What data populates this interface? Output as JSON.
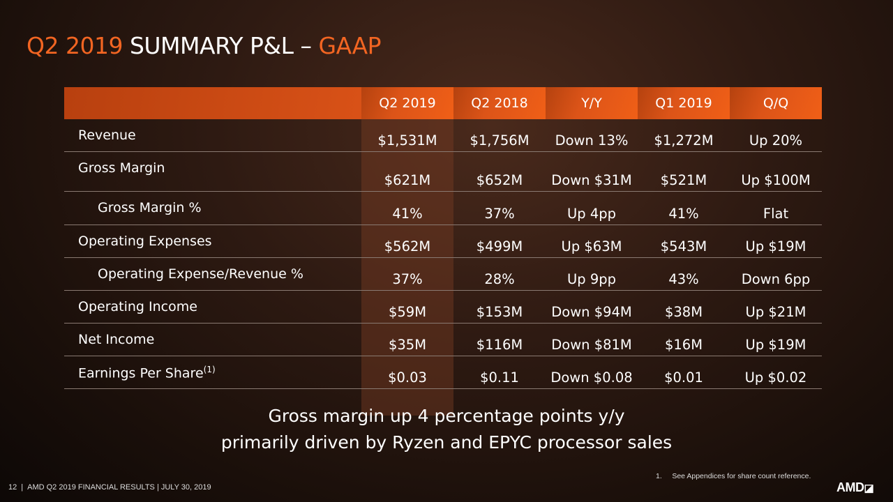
{
  "title": {
    "part1": "Q2 2019",
    "part2": " SUMMARY P&L – ",
    "part3": "GAAP"
  },
  "columns": [
    "Q2 2019",
    "Q2 2018",
    "Y/Y",
    "Q1 2019",
    "Q/Q"
  ],
  "rows": [
    {
      "label": "Revenue",
      "values": [
        "$1,531M",
        "$1,756M",
        "Down 13%",
        "$1,272M",
        "Up 20%"
      ]
    },
    {
      "label": "Gross Margin",
      "values": [
        "$621M",
        "$652M",
        "Down $31M",
        "$521M",
        "Up $100M"
      ]
    },
    {
      "label": "Gross Margin %",
      "values": [
        "41%",
        "37%",
        "Up 4pp",
        "41%",
        "Flat"
      ]
    },
    {
      "label": "Operating Expenses",
      "values": [
        "$562M",
        "$499M",
        "Up $63M",
        "$543M",
        "Up $19M"
      ]
    },
    {
      "label": "Operating Expense/Revenue %",
      "values": [
        "37%",
        "28%",
        "Up 9pp",
        "43%",
        "Down 6pp"
      ]
    },
    {
      "label": "Operating Income",
      "values": [
        "$59M",
        "$153M",
        "Down $94M",
        "$38M",
        "Up $21M"
      ]
    },
    {
      "label": "Net Income",
      "values": [
        "$35M",
        "$116M",
        "Down $81M",
        "$16M",
        "Up $19M"
      ]
    },
    {
      "label": "Earnings Per Share",
      "sup": "(1)",
      "values": [
        "$0.03",
        "$0.11",
        "Down $0.08",
        "$0.01",
        "Up $0.02"
      ]
    }
  ],
  "caption": {
    "line1": "Gross margin up 4 percentage points y/y",
    "line2": "primarily driven by Ryzen and EPYC processor sales"
  },
  "footnote": "1.     See Appendices for share count reference.",
  "footer": {
    "page": "12",
    "text": "AMD Q2 2019 FINANCIAL RESULTS | JULY 30, 2019"
  },
  "logo": "AMD"
}
